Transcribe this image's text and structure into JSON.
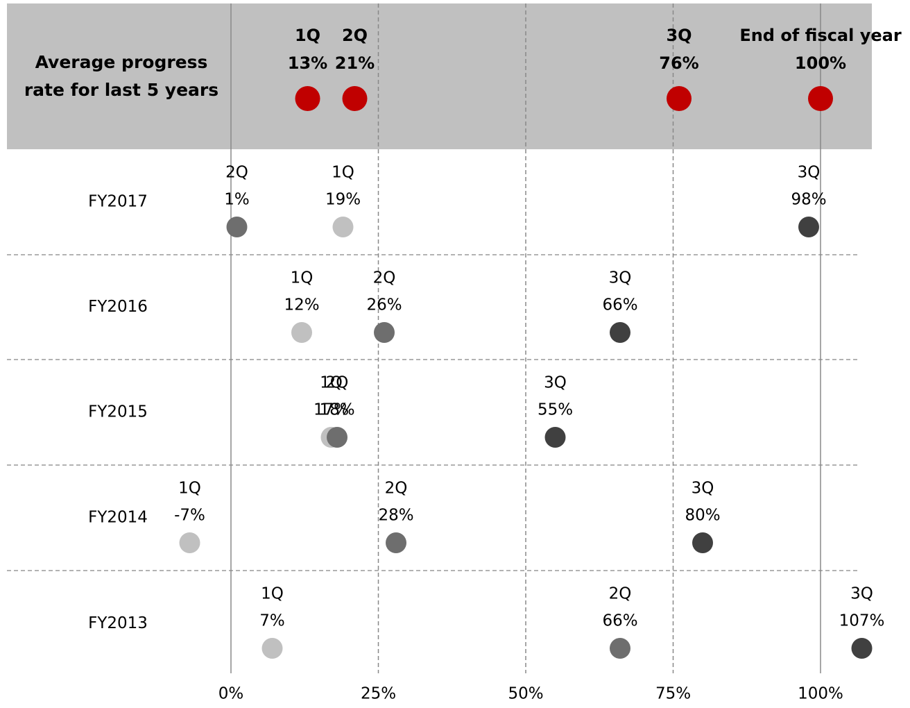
{
  "chart_data": {
    "type": "dot",
    "categories": [
      "Average progress rate for last 5 years",
      "FY2017",
      "FY2016",
      "FY2015",
      "FY2014",
      "FY2013"
    ],
    "series": [
      {
        "name": "1Q",
        "color": "#c0c0c0",
        "values": [
          13,
          19,
          12,
          17,
          -7,
          7
        ],
        "value_labels": [
          "13%",
          "19%",
          "12%",
          "17%",
          "-7%",
          "7%"
        ]
      },
      {
        "name": "2Q",
        "color": "#6e6e6e",
        "values": [
          21,
          1,
          26,
          18,
          28,
          66
        ],
        "value_labels": [
          "21%",
          "1%",
          "26%",
          "18%",
          "28%",
          "66%"
        ]
      },
      {
        "name": "3Q",
        "color": "#404040",
        "values": [
          76,
          98,
          66,
          55,
          80,
          107
        ],
        "value_labels": [
          "76%",
          "98%",
          "66%",
          "55%",
          "80%",
          "107%"
        ]
      },
      {
        "name": "End of fiscal year",
        "color": "#404040",
        "values": [
          100,
          null,
          null,
          null,
          null,
          null
        ],
        "value_labels": [
          "100%",
          null,
          null,
          null,
          null,
          null
        ]
      }
    ],
    "highlight_color": "#c00000",
    "highlight_band_color": "#c0c0c0",
    "xlim": [
      -38,
      110
    ],
    "xticks": [
      {
        "value": 0,
        "label": "0%"
      },
      {
        "value": 25,
        "label": "25%"
      },
      {
        "value": 50,
        "label": "50%"
      },
      {
        "value": 75,
        "label": "75%"
      },
      {
        "value": 100,
        "label": "100%"
      }
    ]
  }
}
